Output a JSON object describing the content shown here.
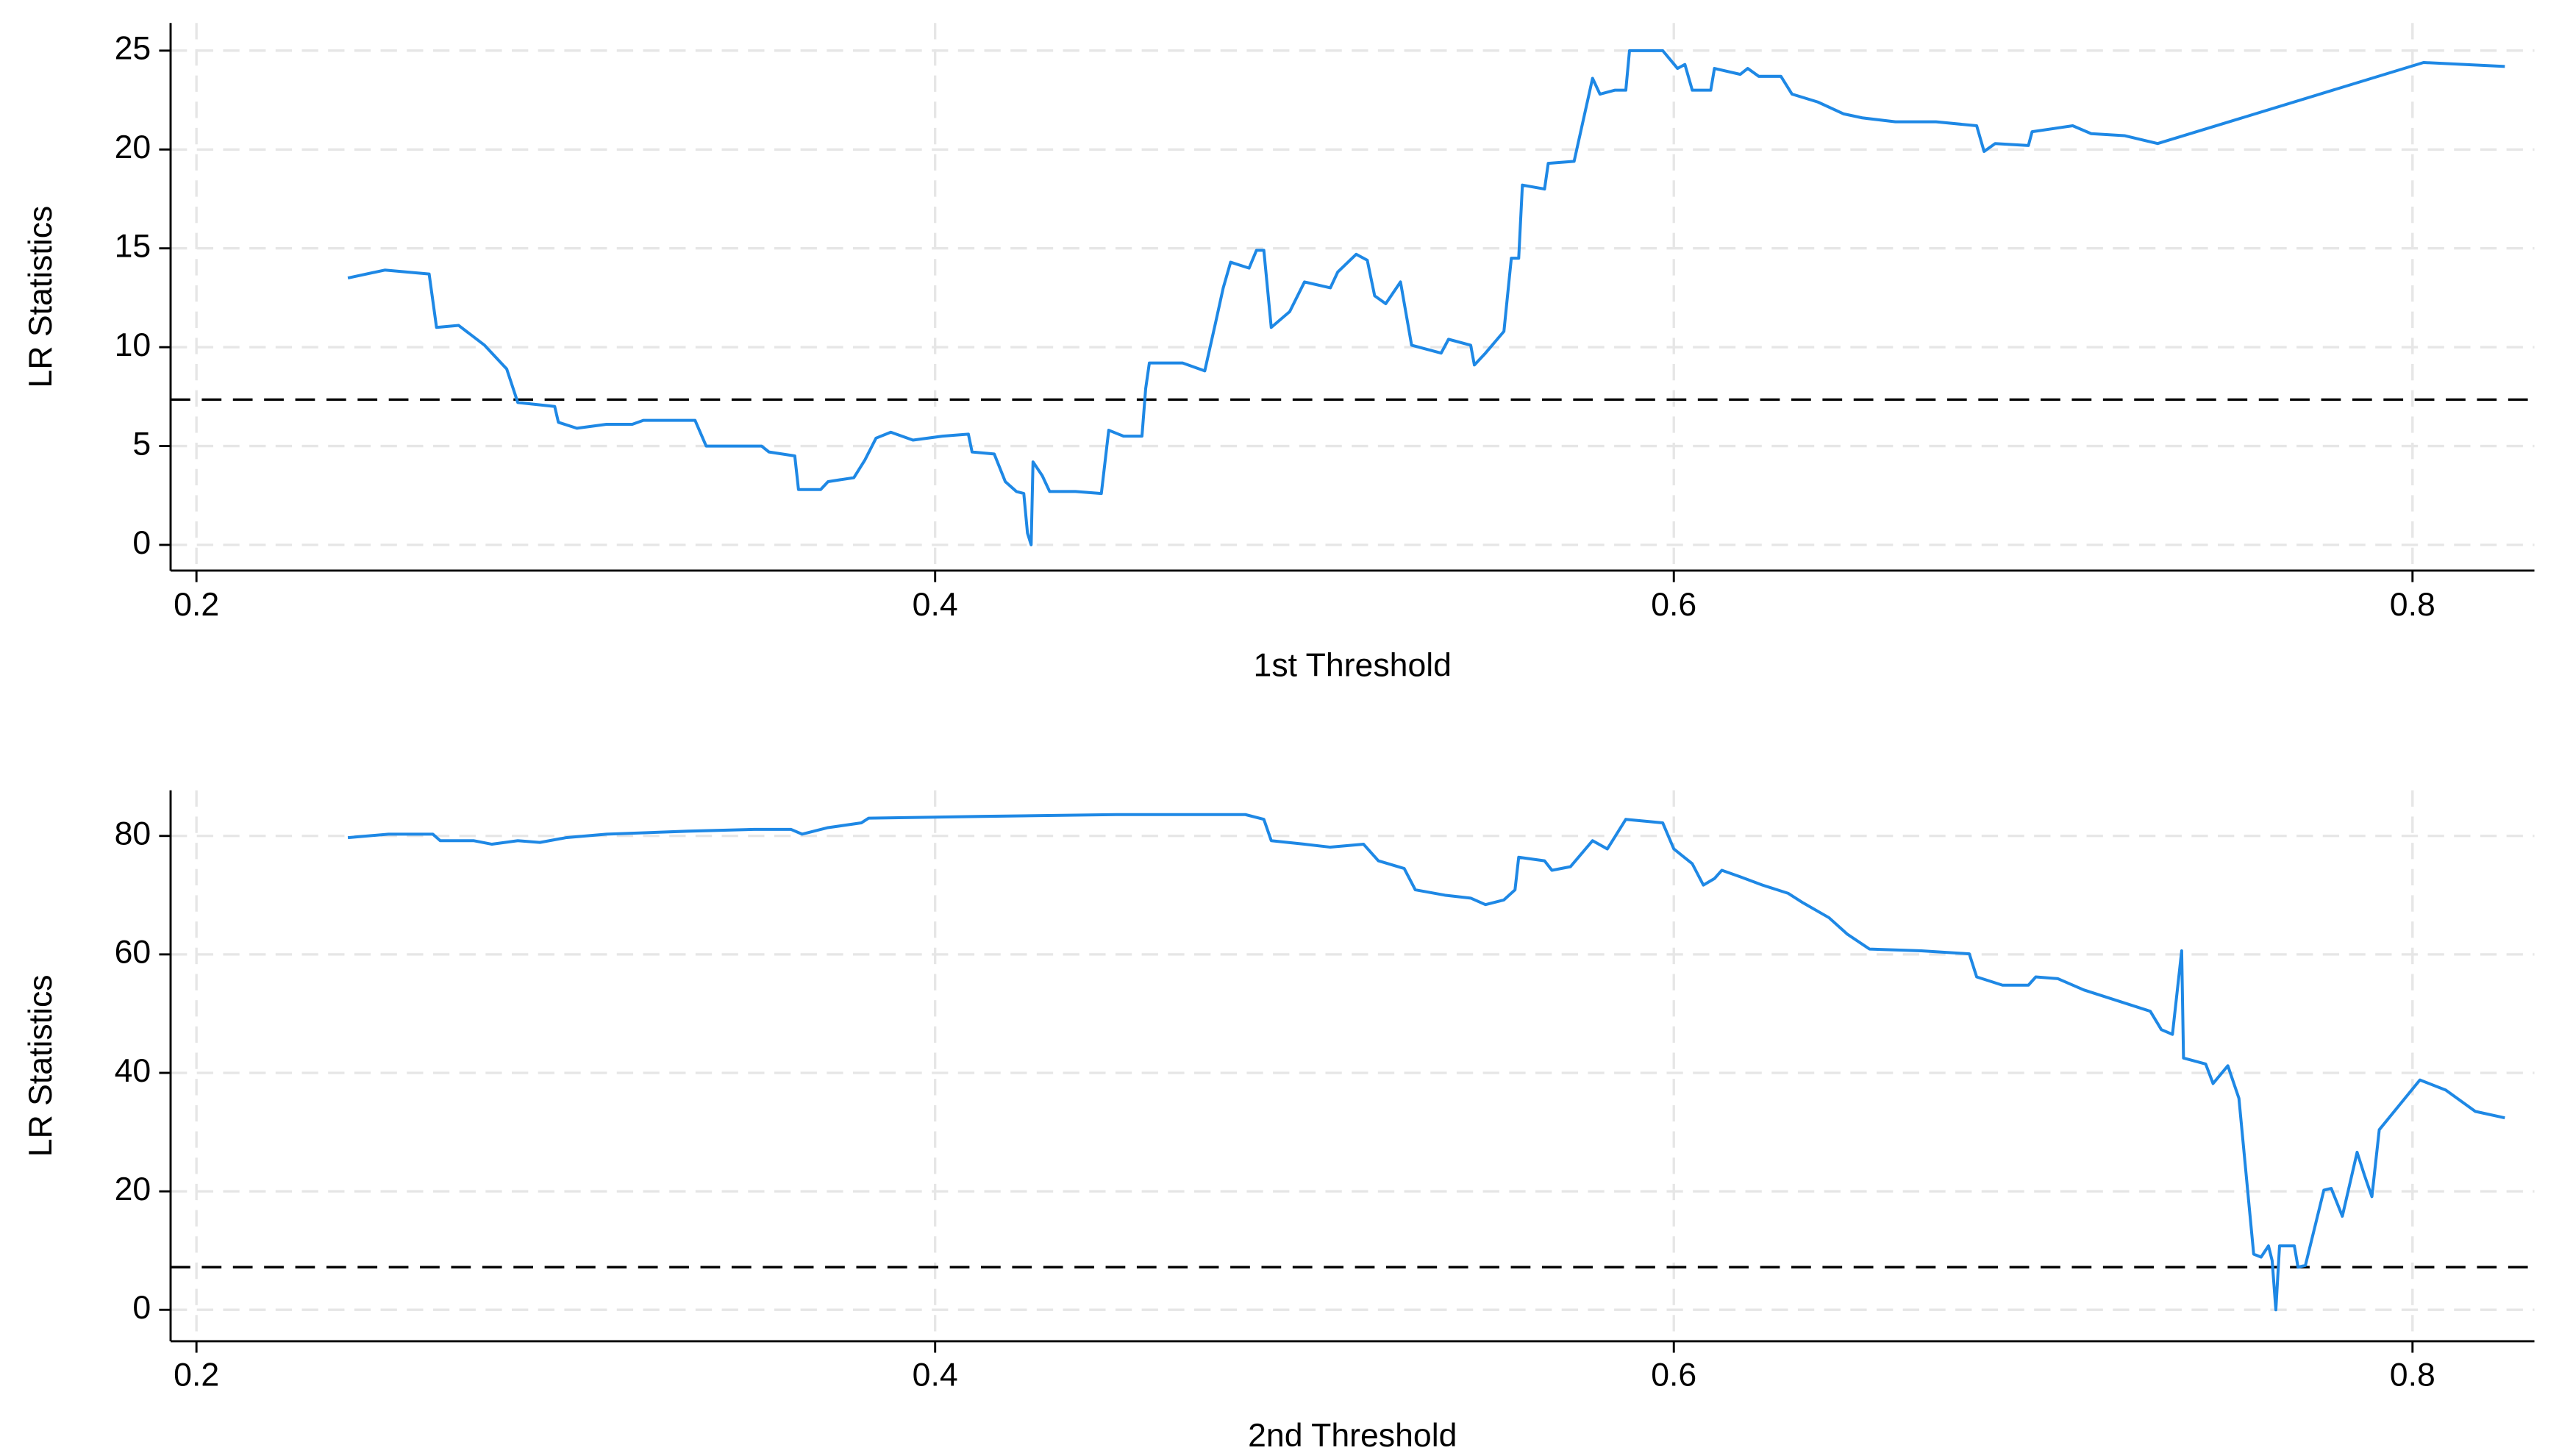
{
  "chart_data": [
    {
      "type": "line",
      "x_label": "1st Threshold",
      "y_label": "LR Statistics",
      "xlim": [
        0.193,
        0.833
      ],
      "ylim": [
        -1.3,
        26.4
      ],
      "xticks": [
        0.2,
        0.4,
        0.6,
        0.8
      ],
      "yticks": [
        0,
        5,
        10,
        15,
        20,
        25
      ],
      "grid": true,
      "reference_line": 7.35,
      "x": [
        0.241,
        0.251,
        0.263,
        0.265,
        0.271,
        0.278,
        0.284,
        0.287,
        0.297,
        0.298,
        0.303,
        0.311,
        0.318,
        0.321,
        0.335,
        0.338,
        0.353,
        0.355,
        0.362,
        0.363,
        0.369,
        0.371,
        0.378,
        0.381,
        0.384,
        0.388,
        0.394,
        0.402,
        0.409,
        0.41,
        0.416,
        0.419,
        0.422,
        0.424,
        0.425,
        0.426,
        0.4265,
        0.429,
        0.431,
        0.438,
        0.445,
        0.447,
        0.451,
        0.456,
        0.457,
        0.458,
        0.467,
        0.473,
        0.476,
        0.478,
        0.48,
        0.485,
        0.487,
        0.489,
        0.491,
        0.496,
        0.5,
        0.507,
        0.509,
        0.514,
        0.517,
        0.519,
        0.522,
        0.526,
        0.529,
        0.537,
        0.539,
        0.545,
        0.546,
        0.549,
        0.554,
        0.556,
        0.558,
        0.559,
        0.565,
        0.566,
        0.573,
        0.578,
        0.58,
        0.584,
        0.587,
        0.588,
        0.597,
        0.601,
        0.603,
        0.605,
        0.61,
        0.611,
        0.618,
        0.62,
        0.623,
        0.629,
        0.632,
        0.639,
        0.646,
        0.651,
        0.66,
        0.671,
        0.682,
        0.684,
        0.687,
        0.696,
        0.697,
        0.708,
        0.713,
        0.722,
        0.731,
        0.803,
        0.825
      ],
      "series": [
        {
          "color": "#1e88e5",
          "values": [
            13.5,
            13.9,
            13.7,
            11.0,
            11.1,
            10.1,
            8.9,
            7.2,
            7.0,
            6.2,
            5.9,
            6.1,
            6.1,
            6.3,
            6.3,
            5.0,
            5.0,
            4.7,
            4.5,
            2.8,
            2.8,
            3.2,
            3.4,
            4.3,
            5.4,
            5.7,
            5.3,
            5.5,
            5.6,
            4.7,
            4.6,
            3.2,
            2.7,
            2.6,
            0.6,
            0,
            4.2,
            3.5,
            2.7,
            2.7,
            2.6,
            5.8,
            5.5,
            5.5,
            7.9,
            9.2,
            9.2,
            8.8,
            11.3,
            13.0,
            14.3,
            14.0,
            14.9,
            14.9,
            11.0,
            11.8,
            13.3,
            13.0,
            13.8,
            14.7,
            14.4,
            12.6,
            12.2,
            13.3,
            10.1,
            9.7,
            10.4,
            10.1,
            9.1,
            9.7,
            10.8,
            14.5,
            14.5,
            18.2,
            18.0,
            19.3,
            19.4,
            23.6,
            22.8,
            23.0,
            23.0,
            25.0,
            25.0,
            24.1,
            24.3,
            23.0,
            23.0,
            24.1,
            23.8,
            24.1,
            23.7,
            23.7,
            22.8,
            22.4,
            21.8,
            21.6,
            21.4,
            21.4,
            21.2,
            19.9,
            20.3,
            20.2,
            20.9,
            21.2,
            20.8,
            20.7,
            20.3,
            24.4,
            24.2
          ]
        }
      ]
    },
    {
      "type": "line",
      "x_label": "2nd Threshold",
      "y_label": "LR Statistics",
      "xlim": [
        0.193,
        0.833
      ],
      "ylim": [
        -5.3,
        87.7
      ],
      "xticks": [
        0.2,
        0.4,
        0.6,
        0.8
      ],
      "yticks": [
        0,
        20,
        40,
        60,
        80
      ],
      "grid": true,
      "reference_line": 7.2,
      "x": [
        0.241,
        0.252,
        0.264,
        0.266,
        0.275,
        0.28,
        0.287,
        0.293,
        0.3,
        0.311,
        0.333,
        0.351,
        0.361,
        0.364,
        0.371,
        0.38,
        0.382,
        0.413,
        0.449,
        0.484,
        0.489,
        0.491,
        0.5,
        0.507,
        0.516,
        0.52,
        0.527,
        0.53,
        0.538,
        0.545,
        0.549,
        0.554,
        0.557,
        0.558,
        0.565,
        0.567,
        0.572,
        0.578,
        0.582,
        0.587,
        0.597,
        0.6,
        0.605,
        0.608,
        0.611,
        0.613,
        0.618,
        0.624,
        0.631,
        0.635,
        0.642,
        0.647,
        0.653,
        0.667,
        0.68,
        0.682,
        0.689,
        0.696,
        0.698,
        0.704,
        0.711,
        0.729,
        0.732,
        0.735,
        0.7375,
        0.738,
        0.744,
        0.746,
        0.75,
        0.753,
        0.757,
        0.759,
        0.761,
        0.762,
        0.763,
        0.764,
        0.768,
        0.769,
        0.771,
        0.776,
        0.778,
        0.781,
        0.785,
        0.787,
        0.789,
        0.791,
        0.802,
        0.809,
        0.817,
        0.825
      ],
      "series": [
        {
          "color": "#1e88e5",
          "values": [
            79.7,
            80.3,
            80.3,
            79.2,
            79.2,
            78.6,
            79.2,
            78.9,
            79.7,
            80.3,
            80.8,
            81.1,
            81.1,
            80.3,
            81.4,
            82.2,
            83.0,
            83.3,
            83.6,
            83.6,
            82.8,
            79.2,
            78.6,
            78.1,
            78.6,
            75.8,
            74.5,
            70.9,
            70.0,
            69.5,
            68.4,
            69.2,
            70.9,
            76.4,
            75.8,
            74.2,
            74.8,
            79.2,
            77.8,
            82.8,
            82.2,
            77.8,
            75.3,
            71.7,
            72.8,
            74.2,
            73.1,
            71.7,
            70.3,
            68.7,
            66.2,
            63.4,
            60.9,
            60.6,
            60.1,
            56.2,
            54.8,
            54.8,
            56.2,
            55.9,
            54.0,
            50.4,
            47.3,
            46.5,
            60.6,
            42.5,
            41.5,
            38.2,
            41.2,
            35.7,
            9.4,
            8.9,
            10.8,
            8.3,
            0,
            10.8,
            10.8,
            7.2,
            7.5,
            20.2,
            20.5,
            15.8,
            26.6,
            22.7,
            19.1,
            30.4,
            38.8,
            37.1,
            33.5,
            32.4
          ]
        }
      ]
    }
  ]
}
